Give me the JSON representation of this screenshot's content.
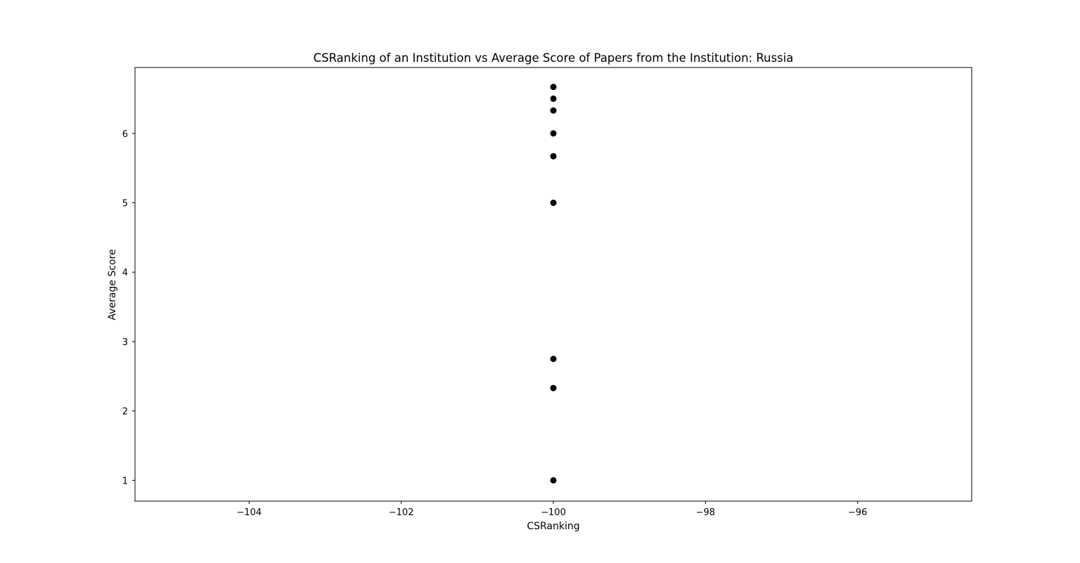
{
  "chart_data": {
    "type": "scatter",
    "title": "CSRanking of an Institution vs Average Score of Papers from the Institution: Russia",
    "xlabel": "CSRanking",
    "ylabel": "Average Score",
    "xlim": [
      -105.5,
      -94.5
    ],
    "ylim": [
      0.7,
      6.95
    ],
    "xticks": [
      -104,
      -102,
      -100,
      -98,
      -96
    ],
    "xtick_labels": [
      "−104",
      "−102",
      "−100",
      "−98",
      "−96"
    ],
    "yticks": [
      1,
      2,
      3,
      4,
      5,
      6
    ],
    "ytick_labels": [
      "1",
      "2",
      "3",
      "4",
      "5",
      "6"
    ],
    "grid": false,
    "marker_color": "#000000",
    "points": [
      {
        "x": -100,
        "y": 6.67
      },
      {
        "x": -100,
        "y": 6.5
      },
      {
        "x": -100,
        "y": 6.33
      },
      {
        "x": -100,
        "y": 6.0
      },
      {
        "x": -100,
        "y": 5.67
      },
      {
        "x": -100,
        "y": 5.0
      },
      {
        "x": -100,
        "y": 2.75
      },
      {
        "x": -100,
        "y": 2.33
      },
      {
        "x": -100,
        "y": 1.0
      }
    ]
  }
}
